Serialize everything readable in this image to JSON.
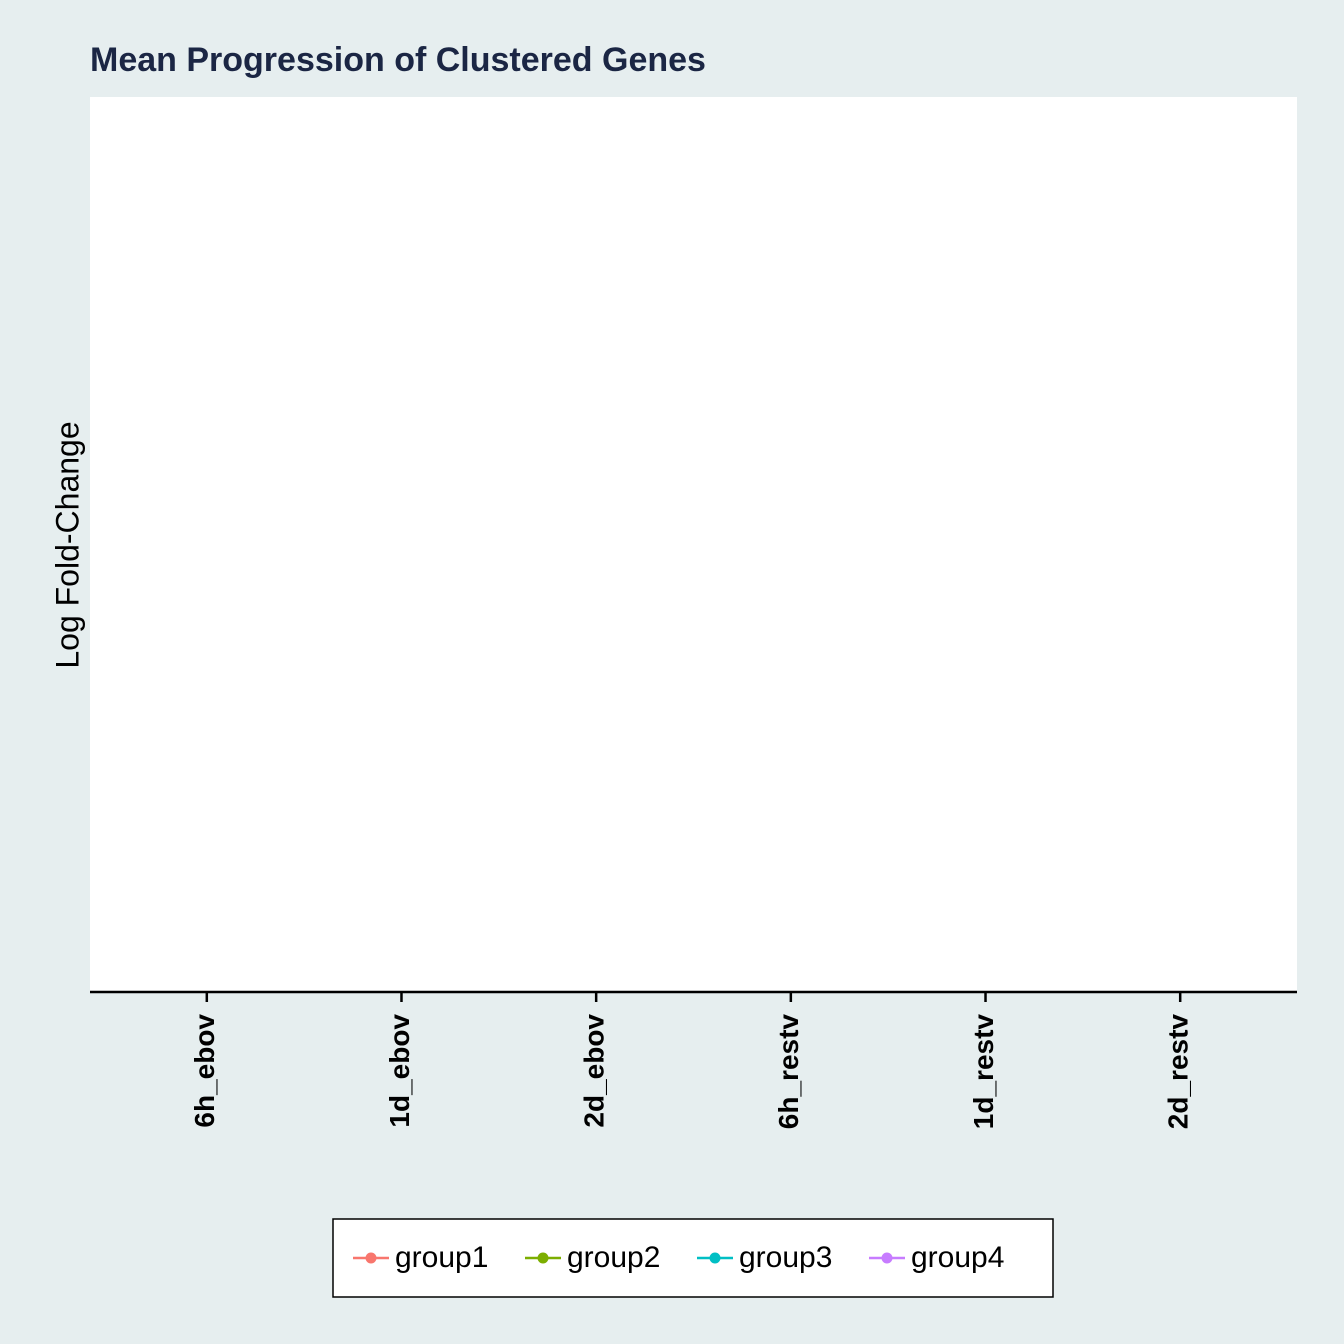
{
  "chart_data": {
    "type": "line",
    "title": "Mean Progression of Clustered Genes",
    "y_label": "Log Fold-Change",
    "categories": [
      "6h_ebov",
      "1d_ebov",
      "2d_ebov",
      "6h_restv",
      "1d_restv",
      "2d_restv"
    ],
    "series": [
      {
        "name": "group1",
        "color": "#f8766d",
        "values": [
          null,
          null,
          null,
          null,
          null,
          null
        ]
      },
      {
        "name": "group2",
        "color": "#7cae00",
        "values": [
          null,
          null,
          null,
          null,
          null,
          null
        ]
      },
      {
        "name": "group3",
        "color": "#00bfc4",
        "values": [
          null,
          null,
          null,
          null,
          null,
          null
        ]
      },
      {
        "name": "group4",
        "color": "#c77cff",
        "values": [
          null,
          null,
          null,
          null,
          null,
          null
        ]
      }
    ],
    "legend": "bottom"
  }
}
